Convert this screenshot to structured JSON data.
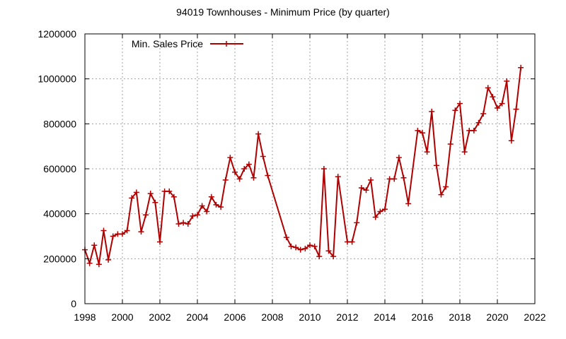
{
  "chart_data": {
    "type": "line",
    "title": "94019 Townhouses - Minimum Price (by quarter)",
    "xlabel": "",
    "ylabel": "",
    "xlim": [
      1998,
      2022
    ],
    "ylim": [
      0,
      1200000
    ],
    "x_ticks": [
      1998,
      2000,
      2002,
      2004,
      2006,
      2008,
      2010,
      2012,
      2014,
      2016,
      2018,
      2020,
      2022
    ],
    "y_ticks": [
      0,
      200000,
      400000,
      600000,
      800000,
      1000000,
      1200000
    ],
    "x_tick_labels": [
      "1998",
      "2000",
      "2002",
      "2004",
      "2006",
      "2008",
      "2010",
      "2012",
      "2014",
      "2016",
      "2018",
      "2020",
      "2022"
    ],
    "y_tick_labels": [
      "0",
      "200000",
      "400000",
      "600000",
      "800000",
      "1000000",
      "1200000"
    ],
    "grid": true,
    "legend_position": "top-left",
    "series": [
      {
        "name": "Min. Sales Price",
        "color": "#b00000",
        "marker": "plus",
        "points": [
          [
            1998.0,
            240000
          ],
          [
            1998.25,
            180000
          ],
          [
            1998.5,
            260000
          ],
          [
            1998.75,
            175000
          ],
          [
            1999.0,
            325000
          ],
          [
            1999.25,
            195000
          ],
          [
            1999.5,
            300000
          ],
          [
            1999.75,
            310000
          ],
          [
            2000.0,
            310000
          ],
          [
            2000.25,
            325000
          ],
          [
            2000.5,
            470000
          ],
          [
            2000.75,
            495000
          ],
          [
            2001.0,
            320000
          ],
          [
            2001.25,
            395000
          ],
          [
            2001.5,
            490000
          ],
          [
            2001.75,
            450000
          ],
          [
            2002.0,
            275000
          ],
          [
            2002.25,
            500000
          ],
          [
            2002.5,
            500000
          ],
          [
            2002.75,
            475000
          ],
          [
            2003.0,
            355000
          ],
          [
            2003.25,
            360000
          ],
          [
            2003.5,
            355000
          ],
          [
            2003.75,
            390000
          ],
          [
            2004.0,
            395000
          ],
          [
            2004.25,
            435000
          ],
          [
            2004.5,
            410000
          ],
          [
            2004.75,
            475000
          ],
          [
            2005.0,
            440000
          ],
          [
            2005.25,
            430000
          ],
          [
            2005.5,
            550000
          ],
          [
            2005.75,
            650000
          ],
          [
            2006.0,
            585000
          ],
          [
            2006.25,
            555000
          ],
          [
            2006.5,
            600000
          ],
          [
            2006.75,
            620000
          ],
          [
            2007.0,
            560000
          ],
          [
            2007.25,
            755000
          ],
          [
            2007.5,
            655000
          ],
          [
            2007.75,
            570000
          ],
          [
            2008.75,
            295000
          ],
          [
            2009.0,
            255000
          ],
          [
            2009.25,
            250000
          ],
          [
            2009.5,
            240000
          ],
          [
            2009.75,
            245000
          ],
          [
            2010.0,
            260000
          ],
          [
            2010.25,
            255000
          ],
          [
            2010.5,
            210000
          ],
          [
            2010.75,
            600000
          ],
          [
            2011.0,
            235000
          ],
          [
            2011.25,
            210000
          ],
          [
            2011.5,
            565000
          ],
          [
            2012.0,
            275000
          ],
          [
            2012.25,
            275000
          ],
          [
            2012.5,
            360000
          ],
          [
            2012.75,
            515000
          ],
          [
            2013.0,
            505000
          ],
          [
            2013.25,
            550000
          ],
          [
            2013.5,
            385000
          ],
          [
            2013.75,
            410000
          ],
          [
            2014.0,
            420000
          ],
          [
            2014.25,
            555000
          ],
          [
            2014.5,
            555000
          ],
          [
            2014.75,
            650000
          ],
          [
            2015.0,
            560000
          ],
          [
            2015.25,
            445000
          ],
          [
            2015.75,
            770000
          ],
          [
            2016.0,
            760000
          ],
          [
            2016.25,
            675000
          ],
          [
            2016.5,
            855000
          ],
          [
            2016.75,
            615000
          ],
          [
            2017.0,
            485000
          ],
          [
            2017.25,
            520000
          ],
          [
            2017.5,
            710000
          ],
          [
            2017.75,
            860000
          ],
          [
            2018.0,
            890000
          ],
          [
            2018.25,
            675000
          ],
          [
            2018.5,
            770000
          ],
          [
            2018.75,
            770000
          ],
          [
            2019.0,
            805000
          ],
          [
            2019.25,
            845000
          ],
          [
            2019.5,
            960000
          ],
          [
            2019.75,
            920000
          ],
          [
            2020.0,
            870000
          ],
          [
            2020.25,
            890000
          ],
          [
            2020.5,
            990000
          ],
          [
            2020.75,
            725000
          ],
          [
            2021.0,
            865000
          ],
          [
            2021.25,
            1050000
          ]
        ]
      }
    ]
  }
}
